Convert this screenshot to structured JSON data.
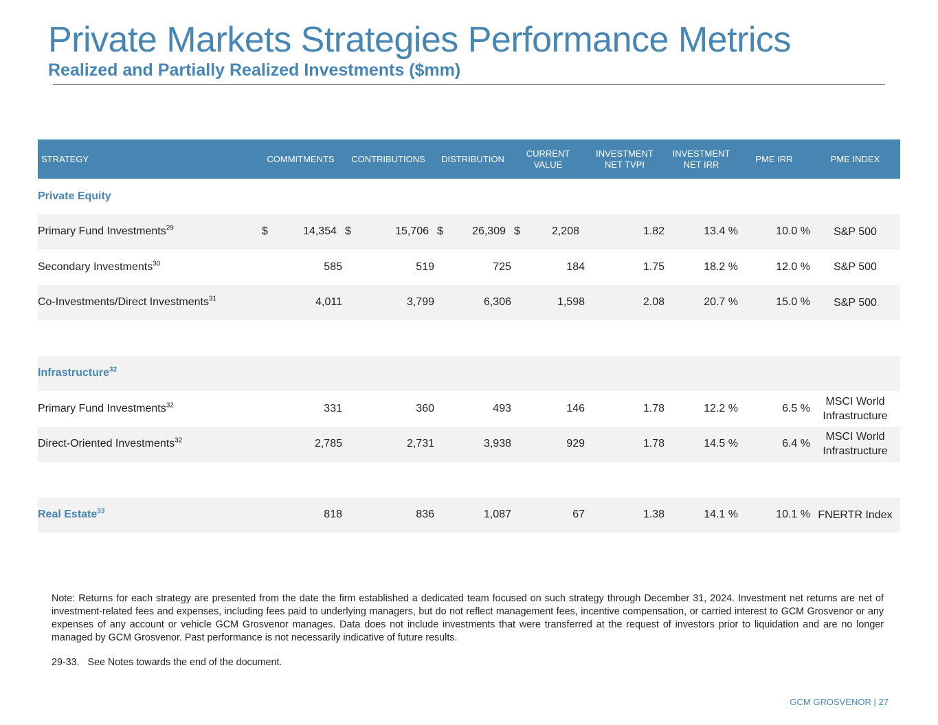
{
  "header": {
    "title": "Private Markets Strategies Performance Metrics",
    "subtitle": "Realized and Partially Realized Investments ($mm)"
  },
  "table": {
    "columns": {
      "strategy": "STRATEGY",
      "commitments": "COMMITMENTS",
      "contributions": "CONTRIBUTIONS",
      "distribution": "DISTRIBUTION",
      "current_value_1": "CURRENT",
      "current_value_2": "VALUE",
      "net_tvpi_1": "INVESTMENT",
      "net_tvpi_2": "NET TVPI",
      "net_irr_1": "INVESTMENT",
      "net_irr_2": "NET IRR",
      "pme_irr": "PME IRR",
      "pme_index": "PME INDEX"
    },
    "currency_symbol": "$",
    "sections": {
      "private_equity": {
        "label": "Private Equity",
        "rows": [
          {
            "name": "Primary Fund Investments",
            "note": "29",
            "commitments": "14,354",
            "contributions": "15,706",
            "distribution": "26,309",
            "current_value": "2,208",
            "net_tvpi": "1.82",
            "net_irr": "13.4 %",
            "pme_irr": "10.0 %",
            "pme_index": "S&P 500"
          },
          {
            "name": "Secondary Investments",
            "note": "30",
            "commitments": "585",
            "contributions": "519",
            "distribution": "725",
            "current_value": "184",
            "net_tvpi": "1.75",
            "net_irr": "18.2 %",
            "pme_irr": "12.0 %",
            "pme_index": "S&P 500"
          },
          {
            "name": "Co-Investments/Direct Investments",
            "note": "31",
            "commitments": "4,011",
            "contributions": "3,799",
            "distribution": "6,306",
            "current_value": "1,598",
            "net_tvpi": "2.08",
            "net_irr": "20.7 %",
            "pme_irr": "15.0 %",
            "pme_index": "S&P 500"
          }
        ]
      },
      "infrastructure": {
        "label": "Infrastructure",
        "note": "32",
        "rows": [
          {
            "name": "Primary Fund Investments",
            "note": "32",
            "commitments": "331",
            "contributions": "360",
            "distribution": "493",
            "current_value": "146",
            "net_tvpi": "1.78",
            "net_irr": "12.2 %",
            "pme_irr": "6.5 %",
            "pme_index_1": "MSCI World",
            "pme_index_2": "Infrastructure"
          },
          {
            "name": "Direct-Oriented Investments",
            "note": "32",
            "commitments": "2,785",
            "contributions": "2,731",
            "distribution": "3,938",
            "current_value": "929",
            "net_tvpi": "1.78",
            "net_irr": "14.5 %",
            "pme_irr": "6.4 %",
            "pme_index_1": "MSCI World",
            "pme_index_2": "Infrastructure"
          }
        ]
      },
      "real_estate": {
        "label": "Real Estate",
        "note": "33",
        "commitments": "818",
        "contributions": "836",
        "distribution": "1,087",
        "current_value": "67",
        "net_tvpi": "1.38",
        "net_irr": "14.1 %",
        "pme_irr": "10.1 %",
        "pme_index": "FNERTR Index"
      }
    }
  },
  "notes": {
    "main": "Note: Returns for each strategy are presented from the date the firm established a dedicated team focused on such strategy through December 31, 2024. Investment net returns are net of investment-related fees and expenses, including fees paid to underlying managers, but do not reflect management fees, incentive compensation, or carried interest to GCM Grosvenor or any expenses of any account or vehicle GCM Grosvenor manages. Data does not include investments that were transferred at the request of investors prior to liquidation and are no longer managed by GCM Grosvenor. Past performance is not necessarily indicative of future results.",
    "footnote_range": "29-33.",
    "footnote_text": "See Notes towards the end of the document."
  },
  "footer": {
    "brand": "GCM GROSVENOR",
    "separator": "|",
    "page_number": "27"
  }
}
